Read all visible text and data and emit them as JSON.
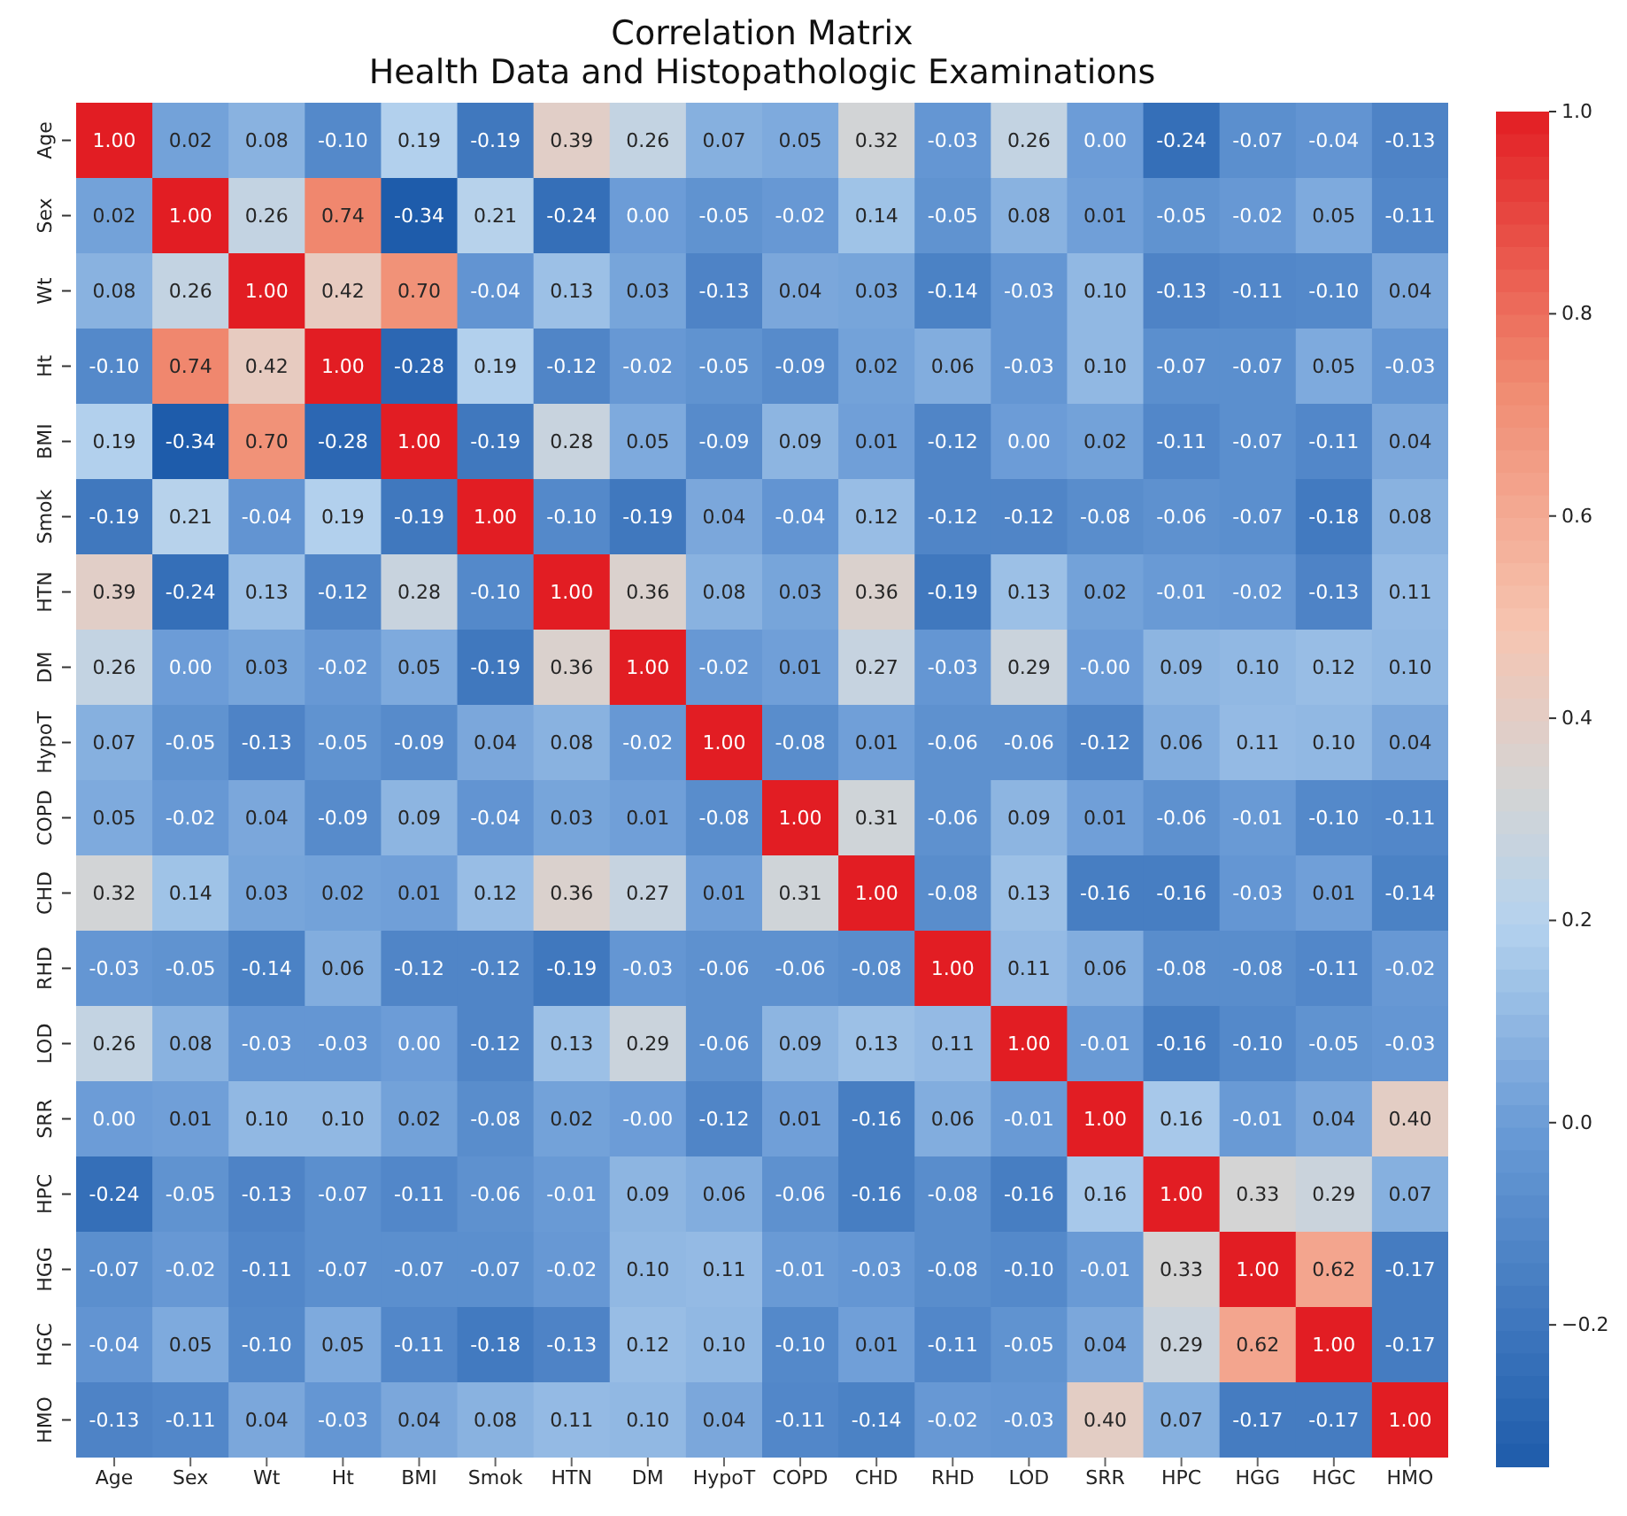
{
  "chart_data": {
    "type": "heatmap",
    "title": "Correlation Matrix",
    "subtitle": "Health Data and Histopathologic Examinations",
    "categories": [
      "Age",
      "Sex",
      "Wt",
      "Ht",
      "BMI",
      "Smok",
      "HTN",
      "DM",
      "HypoT",
      "COPD",
      "CHD",
      "RHD",
      "LOD",
      "SRR",
      "HPC",
      "HGG",
      "HGC",
      "HMO"
    ],
    "y_categories": [
      "Age",
      "Sex",
      "Wt",
      "Ht",
      "BMI",
      "Smok",
      "HTN",
      "DM",
      "HypoT",
      "COPD",
      "CHD",
      "RHD",
      "LOD",
      "SRR",
      "HPC",
      "HGG",
      "HGC",
      "HMO"
    ],
    "cells": [
      [
        1.0,
        0.02,
        0.08,
        -0.1,
        0.19,
        -0.19,
        0.39,
        0.26,
        0.07,
        0.05,
        0.32,
        -0.03,
        0.26,
        0.0,
        -0.24,
        -0.07,
        -0.04,
        -0.13
      ],
      [
        0.02,
        1.0,
        0.26,
        0.74,
        -0.34,
        0.21,
        -0.24,
        0.0,
        -0.05,
        -0.02,
        0.14,
        -0.05,
        0.08,
        0.01,
        -0.05,
        -0.02,
        0.05,
        -0.11
      ],
      [
        0.08,
        0.26,
        1.0,
        0.42,
        0.7,
        -0.04,
        0.13,
        0.03,
        -0.13,
        0.04,
        0.03,
        -0.14,
        -0.03,
        0.1,
        -0.13,
        -0.11,
        -0.1,
        0.04
      ],
      [
        -0.1,
        0.74,
        0.42,
        1.0,
        -0.28,
        0.19,
        -0.12,
        -0.02,
        -0.05,
        -0.09,
        0.02,
        0.06,
        -0.03,
        0.1,
        -0.07,
        -0.07,
        0.05,
        -0.03
      ],
      [
        0.19,
        -0.34,
        0.7,
        -0.28,
        1.0,
        -0.19,
        0.28,
        0.05,
        -0.09,
        0.09,
        0.01,
        -0.12,
        0.0,
        0.02,
        -0.11,
        -0.07,
        -0.11,
        0.04
      ],
      [
        -0.19,
        0.21,
        -0.04,
        0.19,
        -0.19,
        1.0,
        -0.1,
        -0.19,
        0.04,
        -0.04,
        0.12,
        -0.12,
        -0.12,
        -0.08,
        -0.06,
        -0.07,
        -0.18,
        0.08
      ],
      [
        0.39,
        -0.24,
        0.13,
        -0.12,
        0.28,
        -0.1,
        1.0,
        0.36,
        0.08,
        0.03,
        0.36,
        -0.19,
        0.13,
        0.02,
        -0.01,
        -0.02,
        -0.13,
        0.11
      ],
      [
        0.26,
        0.0,
        0.03,
        -0.02,
        0.05,
        -0.19,
        0.36,
        1.0,
        -0.02,
        0.01,
        0.27,
        -0.03,
        0.29,
        -0.0,
        0.09,
        0.1,
        0.12,
        0.1
      ],
      [
        0.07,
        -0.05,
        -0.13,
        -0.05,
        -0.09,
        0.04,
        0.08,
        -0.02,
        1.0,
        -0.08,
        0.01,
        -0.06,
        -0.06,
        -0.12,
        0.06,
        0.11,
        0.1,
        0.04
      ],
      [
        0.05,
        -0.02,
        0.04,
        -0.09,
        0.09,
        -0.04,
        0.03,
        0.01,
        -0.08,
        1.0,
        0.31,
        -0.06,
        0.09,
        0.01,
        -0.06,
        -0.01,
        -0.1,
        -0.11
      ],
      [
        0.32,
        0.14,
        0.03,
        0.02,
        0.01,
        0.12,
        0.36,
        0.27,
        0.01,
        0.31,
        1.0,
        -0.08,
        0.13,
        -0.16,
        -0.16,
        -0.03,
        0.01,
        -0.14
      ],
      [
        -0.03,
        -0.05,
        -0.14,
        0.06,
        -0.12,
        -0.12,
        -0.19,
        -0.03,
        -0.06,
        -0.06,
        -0.08,
        1.0,
        0.11,
        0.06,
        -0.08,
        -0.08,
        -0.11,
        -0.02
      ],
      [
        0.26,
        0.08,
        -0.03,
        -0.03,
        0.0,
        -0.12,
        0.13,
        0.29,
        -0.06,
        0.09,
        0.13,
        0.11,
        1.0,
        -0.01,
        -0.16,
        -0.1,
        -0.05,
        -0.03
      ],
      [
        0.0,
        0.01,
        0.1,
        0.1,
        0.02,
        -0.08,
        0.02,
        -0.0,
        -0.12,
        0.01,
        -0.16,
        0.06,
        -0.01,
        1.0,
        0.16,
        -0.01,
        0.04,
        0.4
      ],
      [
        -0.24,
        -0.05,
        -0.13,
        -0.07,
        -0.11,
        -0.06,
        -0.01,
        0.09,
        0.06,
        -0.06,
        -0.16,
        -0.08,
        -0.16,
        0.16,
        1.0,
        0.33,
        0.29,
        0.07
      ],
      [
        -0.07,
        -0.02,
        -0.11,
        -0.07,
        -0.07,
        -0.07,
        -0.02,
        0.1,
        0.11,
        -0.01,
        -0.03,
        -0.08,
        -0.1,
        -0.01,
        0.33,
        1.0,
        0.62,
        -0.17
      ],
      [
        -0.04,
        0.05,
        -0.1,
        0.05,
        -0.11,
        -0.18,
        -0.13,
        0.12,
        0.1,
        -0.1,
        0.01,
        -0.11,
        -0.05,
        0.04,
        0.29,
        0.62,
        1.0,
        -0.17
      ],
      [
        -0.13,
        -0.11,
        0.04,
        -0.03,
        0.04,
        0.08,
        0.11,
        0.1,
        0.04,
        -0.11,
        -0.14,
        -0.02,
        -0.03,
        0.4,
        0.07,
        -0.17,
        -0.17,
        1.0
      ]
    ],
    "cell_labels": [
      [
        "1.00",
        "0.02",
        "0.08",
        "-0.10",
        "0.19",
        "-0.19",
        "0.39",
        "0.26",
        "0.07",
        "0.05",
        "0.32",
        "-0.03",
        "0.26",
        "0.00",
        "-0.24",
        "-0.07",
        "-0.04",
        "-0.13"
      ],
      [
        "0.02",
        "1.00",
        "0.26",
        "0.74",
        "-0.34",
        "0.21",
        "-0.24",
        "0.00",
        "-0.05",
        "-0.02",
        "0.14",
        "-0.05",
        "0.08",
        "0.01",
        "-0.05",
        "-0.02",
        "0.05",
        "-0.11"
      ],
      [
        "0.08",
        "0.26",
        "1.00",
        "0.42",
        "0.70",
        "-0.04",
        "0.13",
        "0.03",
        "-0.13",
        "0.04",
        "0.03",
        "-0.14",
        "-0.03",
        "0.10",
        "-0.13",
        "-0.11",
        "-0.10",
        "0.04"
      ],
      [
        "-0.10",
        "0.74",
        "0.42",
        "1.00",
        "-0.28",
        "0.19",
        "-0.12",
        "-0.02",
        "-0.05",
        "-0.09",
        "0.02",
        "0.06",
        "-0.03",
        "0.10",
        "-0.07",
        "-0.07",
        "0.05",
        "-0.03"
      ],
      [
        "0.19",
        "-0.34",
        "0.70",
        "-0.28",
        "1.00",
        "-0.19",
        "0.28",
        "0.05",
        "-0.09",
        "0.09",
        "0.01",
        "-0.12",
        "0.00",
        "0.02",
        "-0.11",
        "-0.07",
        "-0.11",
        "0.04"
      ],
      [
        "-0.19",
        "0.21",
        "-0.04",
        "0.19",
        "-0.19",
        "1.00",
        "-0.10",
        "-0.19",
        "0.04",
        "-0.04",
        "0.12",
        "-0.12",
        "-0.12",
        "-0.08",
        "-0.06",
        "-0.07",
        "-0.18",
        "0.08"
      ],
      [
        "0.39",
        "-0.24",
        "0.13",
        "-0.12",
        "0.28",
        "-0.10",
        "1.00",
        "0.36",
        "0.08",
        "0.03",
        "0.36",
        "-0.19",
        "0.13",
        "0.02",
        "-0.01",
        "-0.02",
        "-0.13",
        "0.11"
      ],
      [
        "0.26",
        "0.00",
        "0.03",
        "-0.02",
        "0.05",
        "-0.19",
        "0.36",
        "1.00",
        "-0.02",
        "0.01",
        "0.27",
        "-0.03",
        "0.29",
        "-0.00",
        "0.09",
        "0.10",
        "0.12",
        "0.10"
      ],
      [
        "0.07",
        "-0.05",
        "-0.13",
        "-0.05",
        "-0.09",
        "0.04",
        "0.08",
        "-0.02",
        "1.00",
        "-0.08",
        "0.01",
        "-0.06",
        "-0.06",
        "-0.12",
        "0.06",
        "0.11",
        "0.10",
        "0.04"
      ],
      [
        "0.05",
        "-0.02",
        "0.04",
        "-0.09",
        "0.09",
        "-0.04",
        "0.03",
        "0.01",
        "-0.08",
        "1.00",
        "0.31",
        "-0.06",
        "0.09",
        "0.01",
        "-0.06",
        "-0.01",
        "-0.10",
        "-0.11"
      ],
      [
        "0.32",
        "0.14",
        "0.03",
        "0.02",
        "0.01",
        "0.12",
        "0.36",
        "0.27",
        "0.01",
        "0.31",
        "1.00",
        "-0.08",
        "0.13",
        "-0.16",
        "-0.16",
        "-0.03",
        "0.01",
        "-0.14"
      ],
      [
        "-0.03",
        "-0.05",
        "-0.14",
        "0.06",
        "-0.12",
        "-0.12",
        "-0.19",
        "-0.03",
        "-0.06",
        "-0.06",
        "-0.08",
        "1.00",
        "0.11",
        "0.06",
        "-0.08",
        "-0.08",
        "-0.11",
        "-0.02"
      ],
      [
        "0.26",
        "0.08",
        "-0.03",
        "-0.03",
        "0.00",
        "-0.12",
        "0.13",
        "0.29",
        "-0.06",
        "0.09",
        "0.13",
        "0.11",
        "1.00",
        "-0.01",
        "-0.16",
        "-0.10",
        "-0.05",
        "-0.03"
      ],
      [
        "0.00",
        "0.01",
        "0.10",
        "0.10",
        "0.02",
        "-0.08",
        "0.02",
        "-0.00",
        "-0.12",
        "0.01",
        "-0.16",
        "0.06",
        "-0.01",
        "1.00",
        "0.16",
        "-0.01",
        "0.04",
        "0.40"
      ],
      [
        "-0.24",
        "-0.05",
        "-0.13",
        "-0.07",
        "-0.11",
        "-0.06",
        "-0.01",
        "0.09",
        "0.06",
        "-0.06",
        "-0.16",
        "-0.08",
        "-0.16",
        "0.16",
        "1.00",
        "0.33",
        "0.29",
        "0.07"
      ],
      [
        "-0.07",
        "-0.02",
        "-0.11",
        "-0.07",
        "-0.07",
        "-0.07",
        "-0.02",
        "0.10",
        "0.11",
        "-0.01",
        "-0.03",
        "-0.08",
        "-0.10",
        "-0.01",
        "0.33",
        "1.00",
        "0.62",
        "-0.17"
      ],
      [
        "-0.04",
        "0.05",
        "-0.10",
        "0.05",
        "-0.11",
        "-0.18",
        "-0.13",
        "0.12",
        "0.10",
        "-0.10",
        "0.01",
        "-0.11",
        "-0.05",
        "0.04",
        "0.29",
        "0.62",
        "1.00",
        "-0.17"
      ],
      [
        "-0.13",
        "-0.11",
        "0.04",
        "-0.03",
        "0.04",
        "0.08",
        "0.11",
        "0.10",
        "0.04",
        "-0.11",
        "-0.14",
        "-0.02",
        "-0.03",
        "0.40",
        "0.07",
        "-0.17",
        "-0.17",
        "1.00"
      ]
    ],
    "clim": [
      -0.34,
      1.0
    ],
    "cticks": [
      {
        "value": 1.0,
        "label": "1.0"
      },
      {
        "value": 0.8,
        "label": "0.8"
      },
      {
        "value": 0.6,
        "label": "0.6"
      },
      {
        "value": 0.4,
        "label": "0.4"
      },
      {
        "value": 0.2,
        "label": "0.2"
      },
      {
        "value": 0.0,
        "label": "0.0"
      },
      {
        "value": -0.2,
        "label": "−0.2"
      }
    ]
  }
}
